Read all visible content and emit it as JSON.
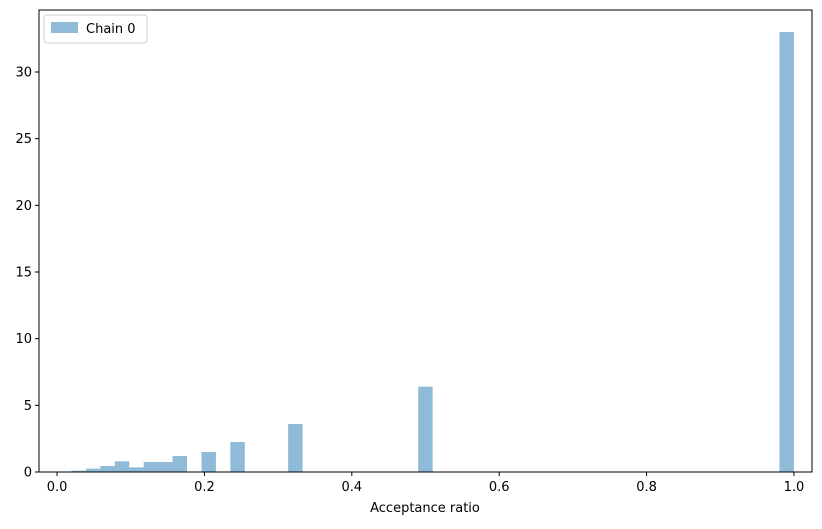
{
  "chart_data": {
    "type": "bar",
    "title": "",
    "xlabel": "Acceptance ratio",
    "ylabel": "",
    "xlim": [
      -0.0245,
      1.0245
    ],
    "ylim": [
      0,
      34.65
    ],
    "xticks": [
      0.0,
      0.2,
      0.4,
      0.6,
      0.8,
      1.0
    ],
    "xtick_labels": [
      "0.0",
      "0.2",
      "0.4",
      "0.6",
      "0.8",
      "1.0"
    ],
    "yticks": [
      0,
      5,
      10,
      15,
      20,
      25,
      30
    ],
    "ytick_labels": [
      "0",
      "5",
      "10",
      "15",
      "20",
      "25",
      "30"
    ],
    "grid": false,
    "legend_position": "upper-left",
    "series": [
      {
        "name": "Chain 0",
        "color": "#1f77b4",
        "alpha": 0.5,
        "bin_width": 0.0196,
        "bins": [
          {
            "x0": 0.0196,
            "value": 0.1
          },
          {
            "x0": 0.0392,
            "value": 0.25
          },
          {
            "x0": 0.0588,
            "value": 0.45
          },
          {
            "x0": 0.0784,
            "value": 0.8
          },
          {
            "x0": 0.098,
            "value": 0.35
          },
          {
            "x0": 0.1176,
            "value": 0.75
          },
          {
            "x0": 0.1372,
            "value": 0.75
          },
          {
            "x0": 0.1568,
            "value": 1.2
          },
          {
            "x0": 0.196,
            "value": 1.5
          },
          {
            "x0": 0.2352,
            "value": 2.25
          },
          {
            "x0": 0.3136,
            "value": 3.6
          },
          {
            "x0": 0.4901,
            "value": 6.4
          },
          {
            "x0": 0.9803,
            "value": 33.0
          }
        ]
      }
    ]
  }
}
